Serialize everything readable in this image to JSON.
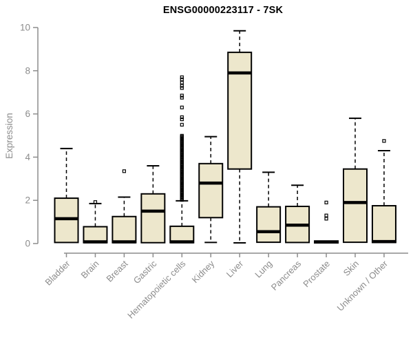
{
  "chart_data": {
    "type": "boxplot",
    "title": "ENSG00000223117 - 7SK",
    "ylabel": "Expression",
    "xlabel": "",
    "ylim": [
      0,
      10
    ],
    "yticks": [
      0,
      2,
      4,
      6,
      8,
      10
    ],
    "grid": false,
    "legend": null,
    "colors": {
      "box_fill": "#ede7cc",
      "box_stroke": "#000000",
      "axis": "#8c8c8c",
      "tick_label": "#8c8c8c",
      "title": "#000000"
    },
    "categories": [
      "Bladder",
      "Brain",
      "Breast",
      "Gastric",
      "Hematopoietic cells",
      "Kidney",
      "Liver",
      "Lung",
      "Pancreas",
      "Prostate",
      "Skin",
      "Unknown / Other"
    ],
    "series": [
      {
        "name": "Bladder",
        "lo": 0.02,
        "q1": 0.05,
        "med": 1.15,
        "q3": 2.1,
        "hi": 4.4,
        "outliers": []
      },
      {
        "name": "Brain",
        "lo": 0.02,
        "q1": 0.04,
        "med": 0.08,
        "q3": 0.78,
        "hi": 1.85,
        "outliers": [
          1.92
        ]
      },
      {
        "name": "Breast",
        "lo": 0.02,
        "q1": 0.04,
        "med": 0.08,
        "q3": 1.25,
        "hi": 2.15,
        "outliers": [
          3.35
        ]
      },
      {
        "name": "Gastric",
        "lo": 0.02,
        "q1": 0.04,
        "med": 1.5,
        "q3": 2.3,
        "hi": 3.6,
        "outliers": []
      },
      {
        "name": "Hematopoietic cells",
        "lo": 0.02,
        "q1": 0.04,
        "med": 0.08,
        "q3": 0.8,
        "hi": 1.98,
        "outliers": [
          5.5,
          5.75,
          5.85,
          6.3,
          6.75,
          6.85,
          7.2,
          7.3,
          7.45,
          7.6,
          7.7
        ],
        "outliers_dense": {
          "from": 2.02,
          "to": 5.0,
          "step": 0.045
        }
      },
      {
        "name": "Kidney",
        "lo": 0.05,
        "q1": 1.2,
        "med": 2.8,
        "q3": 3.7,
        "hi": 4.95,
        "outliers": []
      },
      {
        "name": "Liver",
        "lo": 0.03,
        "q1": 3.45,
        "med": 7.9,
        "q3": 8.85,
        "hi": 9.85,
        "outliers": []
      },
      {
        "name": "Lung",
        "lo": 0.02,
        "q1": 0.06,
        "med": 0.55,
        "q3": 1.7,
        "hi": 3.3,
        "outliers": []
      },
      {
        "name": "Pancreas",
        "lo": 0.02,
        "q1": 0.05,
        "med": 0.85,
        "q3": 1.72,
        "hi": 2.7,
        "outliers": []
      },
      {
        "name": "Prostate",
        "lo": 0.02,
        "q1": 0.03,
        "med": 0.07,
        "q3": 0.12,
        "hi": 0.12,
        "outliers": [
          1.15,
          1.3,
          1.9
        ]
      },
      {
        "name": "Skin",
        "lo": 0.03,
        "q1": 0.06,
        "med": 1.9,
        "q3": 3.45,
        "hi": 5.8,
        "outliers": []
      },
      {
        "name": "Unknown / Other",
        "lo": 0.02,
        "q1": 0.05,
        "med": 0.09,
        "q3": 1.75,
        "hi": 4.3,
        "outliers": [
          4.75
        ]
      }
    ]
  }
}
